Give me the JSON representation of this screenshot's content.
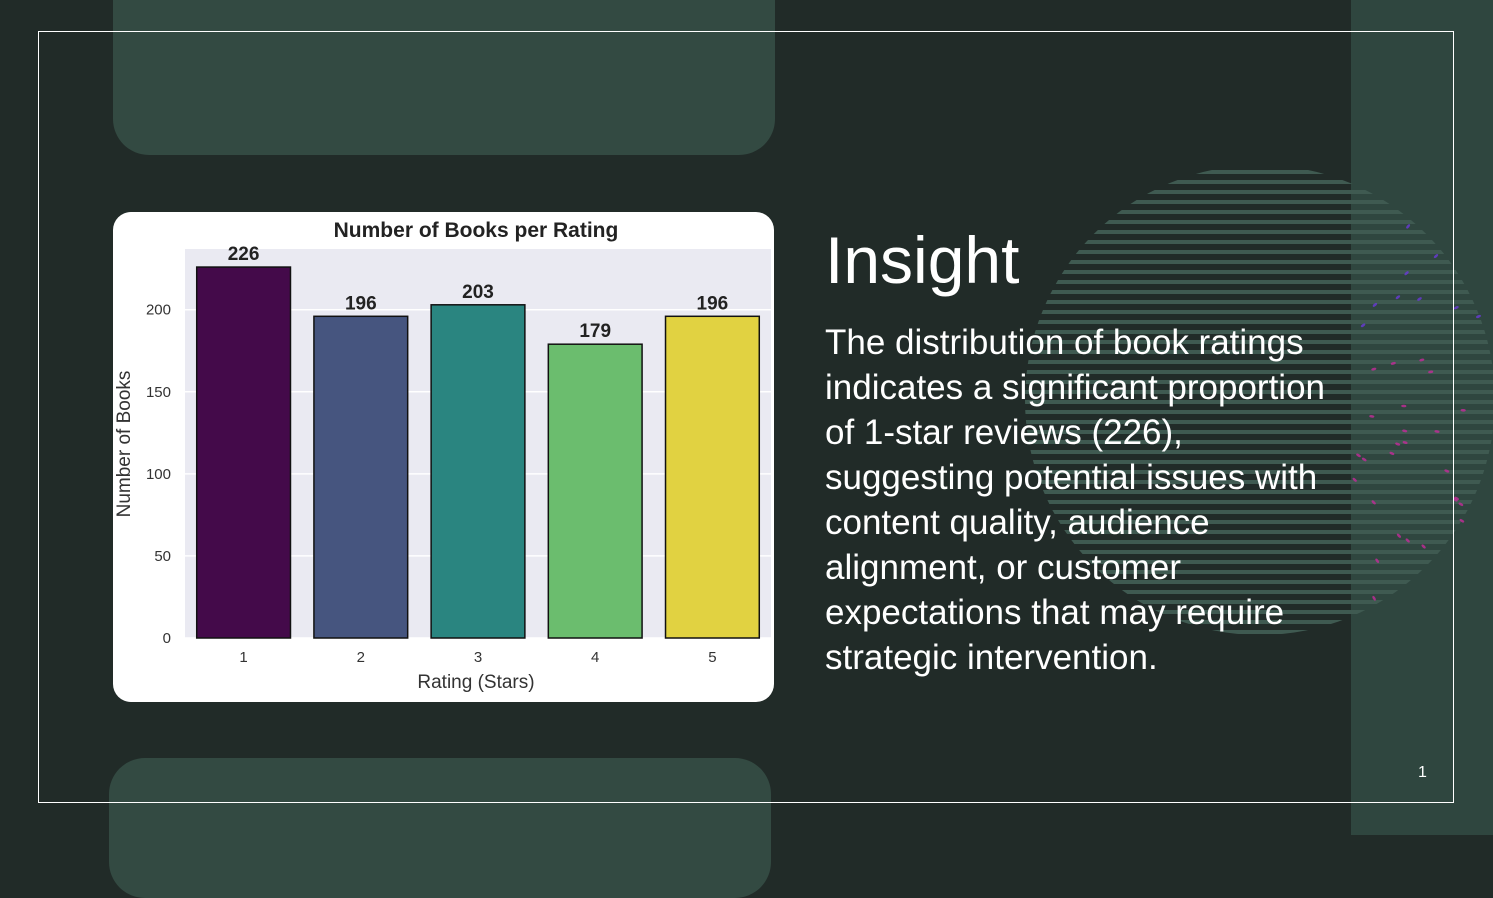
{
  "slide": {
    "title": "Insight",
    "body": "The distribution of book ratings indicates a significant proportion of 1-star reviews (226), suggesting potential issues with content quality, audience alignment, or customer expectations that may require strategic intervention.",
    "page_number": "1"
  },
  "colors": {
    "background": "#212b28",
    "accent_panel": "#334a42",
    "plot_background": "#eaeaf2"
  },
  "chart_data": {
    "type": "bar",
    "title": "Number of Books per Rating",
    "xlabel": "Rating (Stars)",
    "ylabel": "Number of Books",
    "categories": [
      "1",
      "2",
      "3",
      "4",
      "5"
    ],
    "values": [
      226,
      196,
      203,
      179,
      196
    ],
    "bar_colors": [
      "#440a4a",
      "#46557f",
      "#2a8580",
      "#6bbd6e",
      "#e1d241"
    ],
    "yticks": [
      0,
      50,
      100,
      150,
      200
    ],
    "ylim": [
      0,
      237
    ],
    "grid": true,
    "legend": "none",
    "data_labels": true
  }
}
